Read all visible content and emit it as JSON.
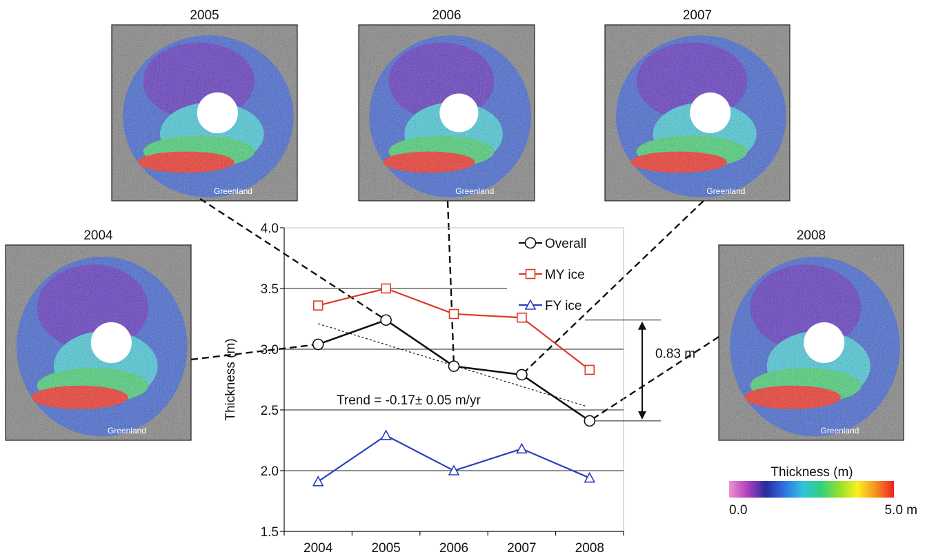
{
  "chart_data": {
    "type": "line",
    "title": "",
    "xlabel": "",
    "ylabel": "Thickness (m)",
    "categories": [
      "2004",
      "2005",
      "2006",
      "2007",
      "2008"
    ],
    "ylim": [
      1.5,
      4.0
    ],
    "yticks": [
      "1.5",
      "2.0",
      "2.5",
      "3.0",
      "3.5",
      "4.0"
    ],
    "legend_position": "top-right",
    "series": [
      {
        "name": "Overall",
        "values": [
          3.04,
          3.24,
          2.86,
          2.79,
          2.41
        ],
        "color": "#111111",
        "marker": "circle"
      },
      {
        "name": "MY ice",
        "values": [
          3.36,
          3.5,
          3.29,
          3.26,
          2.83
        ],
        "color": "#d93a26",
        "marker": "square"
      },
      {
        "name": "FY ice",
        "values": [
          1.91,
          2.29,
          2.0,
          2.18,
          1.94
        ],
        "color": "#2a3fbf",
        "marker": "triangle"
      }
    ],
    "trend": {
      "label": "Trend = -0.17± 0.05 m/yr",
      "start": 3.21,
      "end": 2.53
    },
    "difference": {
      "label": "0.83 m",
      "high": 3.24,
      "low": 2.41
    },
    "maps": [
      {
        "year": "2004",
        "region_label": "Greenland"
      },
      {
        "year": "2005",
        "region_label": "Greenland"
      },
      {
        "year": "2006",
        "region_label": "Greenland"
      },
      {
        "year": "2007",
        "region_label": "Greenland"
      },
      {
        "year": "2008",
        "region_label": "Greenland"
      }
    ],
    "colorbar": {
      "title": "Thickness (m)",
      "min_label": "0.0",
      "max_label": "5.0 m",
      "colors": [
        "#f090d0",
        "#b040c0",
        "#2a2aa0",
        "#3070e0",
        "#30c0e0",
        "#30d080",
        "#90e030",
        "#f8f020",
        "#f89020",
        "#f02020"
      ]
    }
  }
}
